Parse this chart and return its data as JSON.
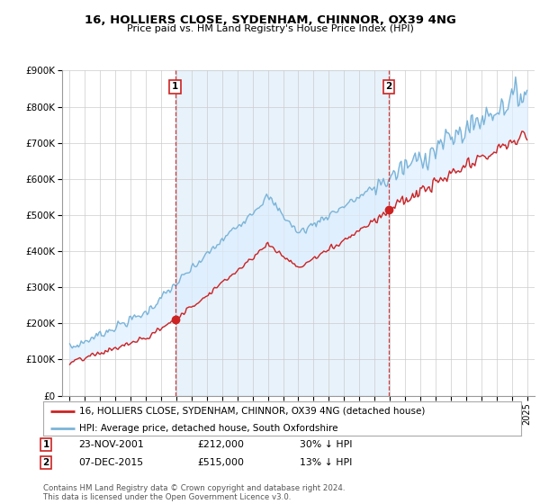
{
  "title": "16, HOLLIERS CLOSE, SYDENHAM, CHINNOR, OX39 4NG",
  "subtitle": "Price paid vs. HM Land Registry's House Price Index (HPI)",
  "legend_line1": "16, HOLLIERS CLOSE, SYDENHAM, CHINNOR, OX39 4NG (detached house)",
  "legend_line2": "HPI: Average price, detached house, South Oxfordshire",
  "transaction1_date": "23-NOV-2001",
  "transaction1_price": "£212,000",
  "transaction1_hpi": "30% ↓ HPI",
  "transaction2_date": "07-DEC-2015",
  "transaction2_price": "£515,000",
  "transaction2_hpi": "13% ↓ HPI",
  "footer": "Contains HM Land Registry data © Crown copyright and database right 2024.\nThis data is licensed under the Open Government Licence v3.0.",
  "hpi_color": "#7ab4d8",
  "price_paid_color": "#cc2222",
  "vline_color": "#cc2222",
  "fill_color": "#ddeeff",
  "marker1_x": 2001.92,
  "marker1_y": 212000,
  "marker2_x": 2015.92,
  "marker2_y": 515000,
  "ylim": [
    0,
    900000
  ],
  "xlim_left": 1994.5,
  "xlim_right": 2025.5,
  "background_color": "#ffffff"
}
